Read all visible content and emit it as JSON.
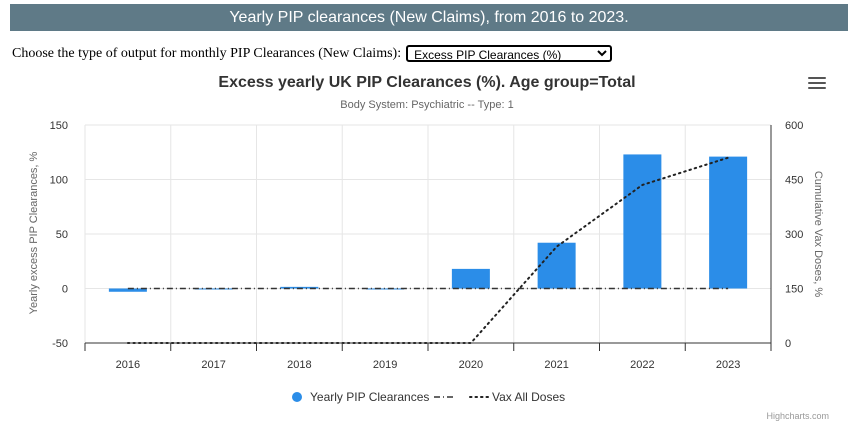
{
  "page": {
    "banner_title": "Yearly PIP clearances (New Claims), from 2016 to 2023.",
    "selector_label": "Choose the type of output for monthly PIP Clearances (New Claims):",
    "selector_value": "Excess PIP Clearances (%)",
    "menu_icon": "hamburger-menu-icon",
    "credits": "Highcharts.com"
  },
  "chart_data": {
    "type": "bar",
    "title": "Excess yearly UK PIP Clearances (%). Age group=Total",
    "subtitle": "Body System: Psychiatric -- Type: 1",
    "categories": [
      "2016",
      "2017",
      "2018",
      "2019",
      "2020",
      "2021",
      "2022",
      "2023"
    ],
    "ylabel": "Yearly excess PIP Clearances, %",
    "ylim": [
      -50,
      150
    ],
    "yticks": [
      -50,
      0,
      50,
      100,
      150
    ],
    "y2label": "Cumulative Vax Doses, %",
    "y2lim": [
      0,
      600
    ],
    "y2ticks": [
      0,
      150,
      300,
      450,
      600
    ],
    "series": [
      {
        "name": "Yearly PIP Clearances",
        "type": "bar",
        "axis": "left",
        "color": "#2b8de8",
        "values": [
          -3,
          0,
          1.5,
          0,
          18,
          42,
          123,
          121
        ]
      },
      {
        "name": "",
        "type": "line",
        "axis": "left",
        "dash": "dashdot",
        "color": "#333333",
        "values": [
          0,
          0,
          0,
          0,
          0,
          0,
          0,
          0
        ]
      },
      {
        "name": "Vax All Doses",
        "type": "line",
        "axis": "right",
        "dash": "dot",
        "color": "#222222",
        "values": [
          0,
          0,
          0,
          0,
          0,
          265,
          435,
          510
        ]
      }
    ],
    "legend": [
      "Yearly PIP Clearances",
      "",
      "Vax All Doses"
    ],
    "legend_position": "bottom-center"
  }
}
